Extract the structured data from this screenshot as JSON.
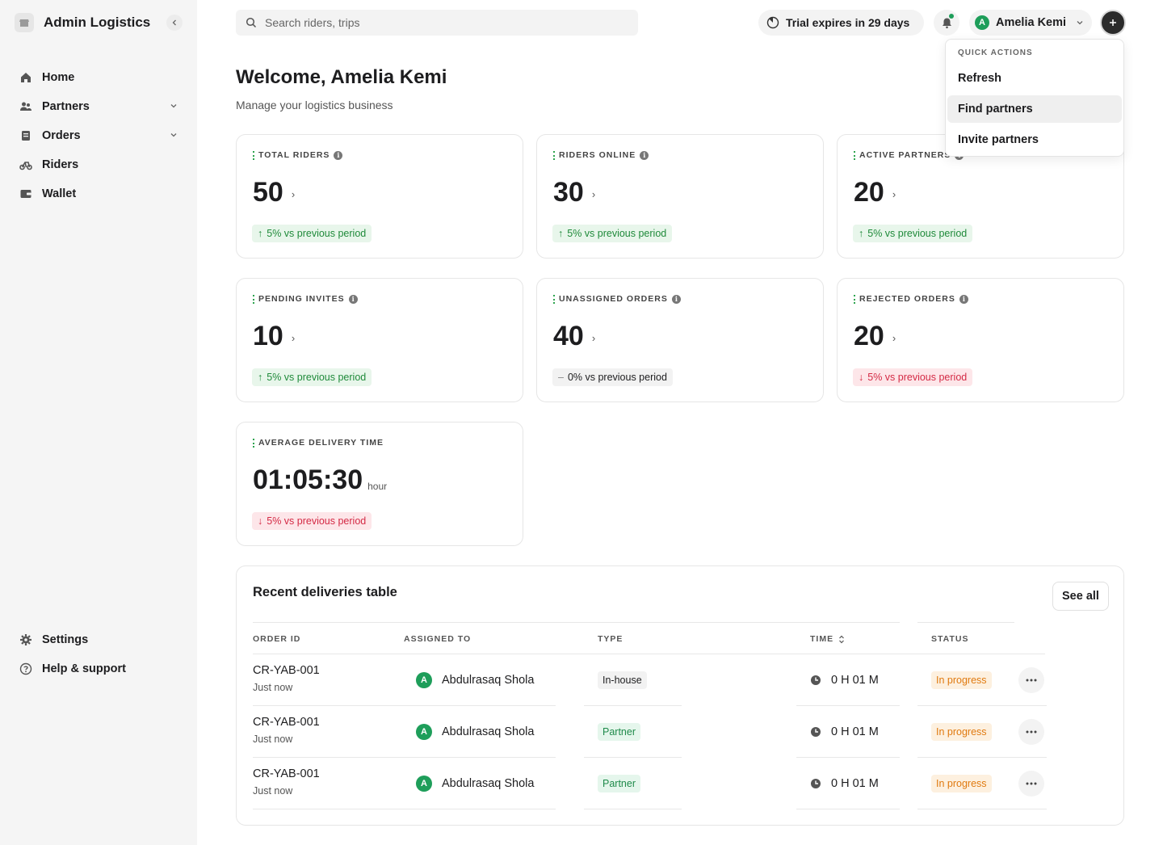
{
  "sidebar": {
    "title": "Admin Logistics",
    "items": [
      {
        "label": "Home",
        "icon": "home-icon"
      },
      {
        "label": "Partners",
        "icon": "partners-icon"
      },
      {
        "label": "Orders",
        "icon": "orders-icon"
      },
      {
        "label": "Riders",
        "icon": "bike-icon"
      },
      {
        "label": "Wallet",
        "icon": "wallet-icon"
      }
    ],
    "bottom_items": [
      {
        "label": "Settings",
        "icon": "gear-icon"
      },
      {
        "label": "Help & support",
        "icon": "help-icon"
      }
    ]
  },
  "header": {
    "search_placeholder": "Search riders, trips",
    "trial_text": "Trial expires in 29 days",
    "user_initial": "A",
    "user_name": "Amelia Kemi"
  },
  "quick_actions": {
    "title": "QUICK ACTIONS",
    "items": [
      "Refresh",
      "Find partners",
      "Invite partners"
    ],
    "highlighted": "Find partners"
  },
  "welcome": {
    "title": "Welcome, Amelia Kemi",
    "subtitle": "Manage your logistics business"
  },
  "stats": [
    {
      "label": "TOTAL RIDERS",
      "value": "50",
      "change": "5% vs previous period",
      "trend": "up"
    },
    {
      "label": "RIDERS ONLINE",
      "value": "30",
      "change": "5% vs previous period",
      "trend": "up"
    },
    {
      "label": "ACTIVE PARTNERS",
      "value": "20",
      "change": "5% vs previous period",
      "trend": "up"
    },
    {
      "label": "PENDING INVITES",
      "value": "10",
      "change": "5% vs previous period",
      "trend": "up"
    },
    {
      "label": "UNASSIGNED ORDERS",
      "value": "40",
      "change": "0% vs previous period",
      "trend": "flat"
    },
    {
      "label": "REJECTED ORDERS",
      "value": "20",
      "change": "5% vs previous period",
      "trend": "down"
    },
    {
      "label": "AVERAGE DELIVERY TIME",
      "value": "01:05:30",
      "unit": "hour",
      "change": "5% vs previous period",
      "trend": "down"
    }
  ],
  "table": {
    "title": "Recent deliveries table",
    "see_all": "See all",
    "columns": [
      "ORDER ID",
      "ASSIGNED TO",
      "TYPE",
      "TIME",
      "STATUS"
    ],
    "rows": [
      {
        "order_id": "CR-YAB-001",
        "time_ago": "Just now",
        "initial": "A",
        "assignee": "Abdulrasaq Shola",
        "type": "In-house",
        "duration": "0 H 01 M",
        "status": "In progress"
      },
      {
        "order_id": "CR-YAB-001",
        "time_ago": "Just now",
        "initial": "A",
        "assignee": "Abdulrasaq Shola",
        "type": "Partner",
        "duration": "0 H 01 M",
        "status": "In progress"
      },
      {
        "order_id": "CR-YAB-001",
        "time_ago": "Just now",
        "initial": "A",
        "assignee": "Abdulrasaq Shola",
        "type": "Partner",
        "duration": "0 H 01 M",
        "status": "In progress"
      }
    ]
  },
  "colors": {
    "accent_green": "#1e9e5a",
    "up_text": "#1f8a3a",
    "down_text": "#d42a45",
    "status_orange": "#e07a10",
    "sidebar_bg": "#f5f5f5"
  }
}
